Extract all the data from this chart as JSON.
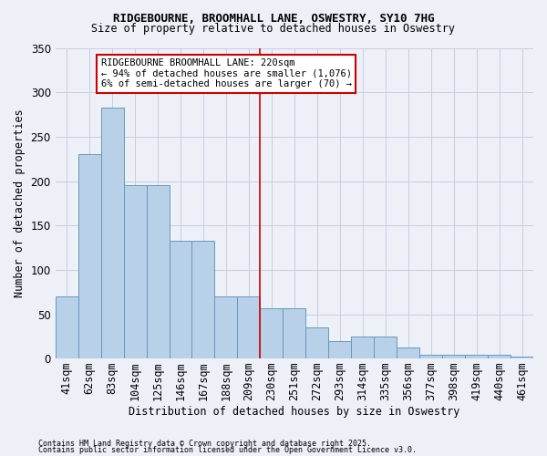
{
  "title1": "RIDGEBOURNE, BROOMHALL LANE, OSWESTRY, SY10 7HG",
  "title2": "Size of property relative to detached houses in Oswestry",
  "xlabel": "Distribution of detached houses by size in Oswestry",
  "ylabel": "Number of detached properties",
  "footer1": "Contains HM Land Registry data © Crown copyright and database right 2025.",
  "footer2": "Contains public sector information licensed under the Open Government Licence v3.0.",
  "categories": [
    "41sqm",
    "62sqm",
    "83sqm",
    "104sqm",
    "125sqm",
    "146sqm",
    "167sqm",
    "188sqm",
    "209sqm",
    "230sqm",
    "251sqm",
    "272sqm",
    "293sqm",
    "314sqm",
    "335sqm",
    "356sqm",
    "377sqm",
    "398sqm",
    "419sqm",
    "440sqm",
    "461sqm"
  ],
  "values": [
    70,
    230,
    283,
    196,
    196,
    133,
    133,
    70,
    70,
    57,
    57,
    35,
    20,
    25,
    25,
    13,
    5,
    5,
    5,
    5,
    2
  ],
  "bar_color": "#b8d0e8",
  "bar_edge_color": "#6699bb",
  "grid_color": "#c8cce0",
  "bg_color": "#eef0f8",
  "annotation_text": "RIDGEBOURNE BROOMHALL LANE: 220sqm\n← 94% of detached houses are smaller (1,076)\n6% of semi-detached houses are larger (70) →",
  "vline_x": 8.5,
  "ylim": [
    0,
    350
  ],
  "yticks": [
    0,
    50,
    100,
    150,
    200,
    250,
    300,
    350
  ]
}
